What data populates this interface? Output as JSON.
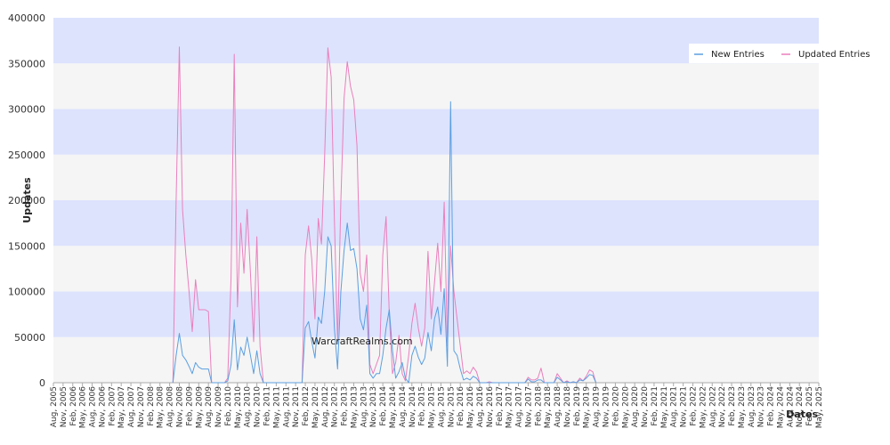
{
  "chart_data": {
    "type": "line",
    "watermark": "WarcraftRealms.com",
    "xlabel": "Dates",
    "ylabel": "Updates",
    "ylim": [
      0,
      400000
    ],
    "yticks": [
      0,
      50000,
      100000,
      150000,
      200000,
      250000,
      300000,
      350000,
      400000
    ],
    "xticks": [
      "Aug, 2005",
      "Nov, 2005",
      "Feb, 2006",
      "May, 2006",
      "Aug, 2006",
      "Nov, 2006",
      "Feb, 2007",
      "May, 2007",
      "Aug, 2007",
      "Nov, 2007",
      "Feb, 2008",
      "May, 2008",
      "Aug, 2008",
      "Nov, 2008",
      "Feb, 2009",
      "May, 2009",
      "Aug, 2009",
      "Nov, 2009",
      "Feb, 2010",
      "May, 2010",
      "Aug, 2010",
      "Nov, 2010",
      "Feb, 2011",
      "May, 2011",
      "Aug, 2011",
      "Nov, 2011",
      "Feb, 2012",
      "May, 2012",
      "Aug, 2012",
      "Nov, 2012",
      "Feb, 2013",
      "May, 2013",
      "Aug, 2013",
      "Nov, 2013",
      "Feb, 2014",
      "May, 2014",
      "Aug, 2014",
      "Nov, 2014",
      "Feb, 2015",
      "May, 2015",
      "Aug, 2015",
      "Nov, 2015",
      "Feb, 2016",
      "May, 2016",
      "Aug, 2016",
      "Nov, 2016",
      "Feb, 2017",
      "May, 2017",
      "Aug, 2017",
      "Nov, 2017",
      "Feb, 2018",
      "May, 2018",
      "Aug, 2018",
      "Nov, 2018",
      "Feb, 2019",
      "May, 2019",
      "Aug, 2019",
      "Nov, 2019",
      "Feb, 2020",
      "May, 2020",
      "Aug, 2020",
      "Nov, 2020",
      "Feb, 2021",
      "May, 2021",
      "Aug, 2021",
      "Nov, 2021",
      "Feb, 2022",
      "May, 2022",
      "Aug, 2022",
      "Nov, 2022",
      "Feb, 2023",
      "May, 2023",
      "Aug, 2023",
      "Nov, 2023",
      "Feb, 2024",
      "May, 2024",
      "Aug, 2024",
      "Nov, 2024",
      "Feb, 2025",
      "May, 2025"
    ],
    "grid": "horizontal alternating bands",
    "band_colors": [
      "#f5f5f5",
      "#dde3fd"
    ],
    "legend": "top-right",
    "series": [
      {
        "name": "New Entries",
        "color": "#5b9fe0",
        "points": [
          [
            "Sep, 2008",
            0
          ],
          [
            "Oct, 2008",
            30000
          ],
          [
            "Nov, 2008",
            54000
          ],
          [
            "Dec, 2008",
            30000
          ],
          [
            "Jan, 2009",
            25000
          ],
          [
            "Feb, 2009",
            18000
          ],
          [
            "Mar, 2009",
            10000
          ],
          [
            "Apr, 2009",
            22000
          ],
          [
            "May, 2009",
            17000
          ],
          [
            "Jun, 2009",
            15000
          ],
          [
            "Jul, 2009",
            15000
          ],
          [
            "Aug, 2009",
            15000
          ],
          [
            "Sep, 2009",
            0
          ],
          [
            "Jan, 2010",
            0
          ],
          [
            "Feb, 2010",
            2000
          ],
          [
            "Mar, 2010",
            20000
          ],
          [
            "Apr, 2010",
            69000
          ],
          [
            "May, 2010",
            14000
          ],
          [
            "Jun, 2010",
            39000
          ],
          [
            "Jul, 2010",
            30000
          ],
          [
            "Aug, 2010",
            50000
          ],
          [
            "Sep, 2010",
            30000
          ],
          [
            "Oct, 2010",
            10000
          ],
          [
            "Nov, 2010",
            35000
          ],
          [
            "Dec, 2010",
            10000
          ],
          [
            "Jan, 2011",
            0
          ],
          [
            "Jan, 2012",
            0
          ],
          [
            "Feb, 2012",
            60000
          ],
          [
            "Mar, 2012",
            67000
          ],
          [
            "Apr, 2012",
            45000
          ],
          [
            "May, 2012",
            27000
          ],
          [
            "Jun, 2012",
            72000
          ],
          [
            "Jul, 2012",
            65000
          ],
          [
            "Aug, 2012",
            100000
          ],
          [
            "Sep, 2012",
            160000
          ],
          [
            "Oct, 2012",
            150000
          ],
          [
            "Nov, 2012",
            60000
          ],
          [
            "Dec, 2012",
            15000
          ],
          [
            "Jan, 2013",
            100000
          ],
          [
            "Feb, 2013",
            145000
          ],
          [
            "Mar, 2013",
            175000
          ],
          [
            "Apr, 2013",
            145000
          ],
          [
            "May, 2013",
            147000
          ],
          [
            "Jun, 2013",
            125000
          ],
          [
            "Jul, 2013",
            70000
          ],
          [
            "Aug, 2013",
            58000
          ],
          [
            "Sep, 2013",
            85000
          ],
          [
            "Oct, 2013",
            10000
          ],
          [
            "Nov, 2013",
            5000
          ],
          [
            "Dec, 2013",
            10000
          ],
          [
            "Jan, 2014",
            10000
          ],
          [
            "Feb, 2014",
            30000
          ],
          [
            "Mar, 2014",
            60000
          ],
          [
            "Apr, 2014",
            80000
          ],
          [
            "May, 2014",
            35000
          ],
          [
            "Jun, 2014",
            5000
          ],
          [
            "Jul, 2014",
            12000
          ],
          [
            "Aug, 2014",
            22000
          ],
          [
            "Sep, 2014",
            5000
          ],
          [
            "Oct, 2014",
            0
          ],
          [
            "Nov, 2014",
            30000
          ],
          [
            "Dec, 2014",
            40000
          ],
          [
            "Jan, 2015",
            28000
          ],
          [
            "Feb, 2015",
            20000
          ],
          [
            "Mar, 2015",
            27000
          ],
          [
            "Apr, 2015",
            55000
          ],
          [
            "May, 2015",
            35000
          ],
          [
            "Jun, 2015",
            70000
          ],
          [
            "Jul, 2015",
            83000
          ],
          [
            "Aug, 2015",
            53000
          ],
          [
            "Sep, 2015",
            103000
          ],
          [
            "Oct, 2015",
            18000
          ],
          [
            "Nov, 2015",
            308000
          ],
          [
            "Dec, 2015",
            35000
          ],
          [
            "Jan, 2016",
            30000
          ],
          [
            "Feb, 2016",
            15000
          ],
          [
            "Mar, 2016",
            3000
          ],
          [
            "Apr, 2016",
            5000
          ],
          [
            "May, 2016",
            3000
          ],
          [
            "Jun, 2016",
            7000
          ],
          [
            "Jul, 2016",
            5000
          ],
          [
            "Aug, 2016",
            0
          ],
          [
            "Oct, 2017",
            0
          ],
          [
            "Nov, 2017",
            4000
          ],
          [
            "Dec, 2017",
            1000
          ],
          [
            "Jan, 2018",
            1000
          ],
          [
            "Feb, 2018",
            3000
          ],
          [
            "Mar, 2018",
            3000
          ],
          [
            "Apr, 2018",
            0
          ],
          [
            "Jul, 2018",
            0
          ],
          [
            "Aug, 2018",
            6000
          ],
          [
            "Sep, 2018",
            3000
          ],
          [
            "Oct, 2018",
            0
          ],
          [
            "Nov, 2018",
            1000
          ],
          [
            "Dec, 2018",
            0
          ],
          [
            "Jan, 2019",
            1000
          ],
          [
            "Feb, 2019",
            0
          ],
          [
            "Mar, 2019",
            3000
          ],
          [
            "Apr, 2019",
            2000
          ],
          [
            "May, 2019",
            5000
          ],
          [
            "Jun, 2019",
            9000
          ],
          [
            "Jul, 2019",
            8000
          ],
          [
            "Aug, 2019",
            0
          ]
        ]
      },
      {
        "name": "Updated Entries",
        "color": "#ea7fbd",
        "points": [
          [
            "Sep, 2008",
            0
          ],
          [
            "Oct, 2008",
            200000
          ],
          [
            "Nov, 2008",
            368000
          ],
          [
            "Dec, 2008",
            190000
          ],
          [
            "Jan, 2009",
            140000
          ],
          [
            "Feb, 2009",
            100000
          ],
          [
            "Mar, 2009",
            56000
          ],
          [
            "Apr, 2009",
            113000
          ],
          [
            "May, 2009",
            80000
          ],
          [
            "Jun, 2009",
            80000
          ],
          [
            "Jul, 2009",
            80000
          ],
          [
            "Aug, 2009",
            78000
          ],
          [
            "Sep, 2009",
            0
          ],
          [
            "Jan, 2010",
            0
          ],
          [
            "Feb, 2010",
            5000
          ],
          [
            "Mar, 2010",
            115000
          ],
          [
            "Apr, 2010",
            360000
          ],
          [
            "May, 2010",
            83000
          ],
          [
            "Jun, 2010",
            175000
          ],
          [
            "Jul, 2010",
            120000
          ],
          [
            "Aug, 2010",
            190000
          ],
          [
            "Sep, 2010",
            120000
          ],
          [
            "Oct, 2010",
            45000
          ],
          [
            "Nov, 2010",
            160000
          ],
          [
            "Dec, 2010",
            40000
          ],
          [
            "Jan, 2011",
            0
          ],
          [
            "Jan, 2012",
            0
          ],
          [
            "Feb, 2012",
            140000
          ],
          [
            "Mar, 2012",
            172000
          ],
          [
            "Apr, 2012",
            135000
          ],
          [
            "May, 2012",
            70000
          ],
          [
            "Jun, 2012",
            180000
          ],
          [
            "Jul, 2012",
            152000
          ],
          [
            "Aug, 2012",
            250000
          ],
          [
            "Sep, 2012",
            367000
          ],
          [
            "Oct, 2012",
            335000
          ],
          [
            "Nov, 2012",
            180000
          ],
          [
            "Dec, 2012",
            45000
          ],
          [
            "Jan, 2013",
            200000
          ],
          [
            "Feb, 2013",
            312000
          ],
          [
            "Mar, 2013",
            352000
          ],
          [
            "Apr, 2013",
            325000
          ],
          [
            "May, 2013",
            310000
          ],
          [
            "Jun, 2013",
            260000
          ],
          [
            "Jul, 2013",
            120000
          ],
          [
            "Aug, 2013",
            100000
          ],
          [
            "Sep, 2013",
            140000
          ],
          [
            "Oct, 2013",
            20000
          ],
          [
            "Nov, 2013",
            10000
          ],
          [
            "Dec, 2013",
            20000
          ],
          [
            "Jan, 2014",
            30000
          ],
          [
            "Feb, 2014",
            140000
          ],
          [
            "Mar, 2014",
            182000
          ],
          [
            "Apr, 2014",
            75000
          ],
          [
            "May, 2014",
            10000
          ],
          [
            "Jun, 2014",
            22000
          ],
          [
            "Jul, 2014",
            52000
          ],
          [
            "Aug, 2014",
            10000
          ],
          [
            "Sep, 2014",
            2000
          ],
          [
            "Oct, 2014",
            30000
          ],
          [
            "Nov, 2014",
            65000
          ],
          [
            "Dec, 2014",
            87000
          ],
          [
            "Jan, 2015",
            60000
          ],
          [
            "Feb, 2015",
            40000
          ],
          [
            "Mar, 2015",
            60000
          ],
          [
            "Apr, 2015",
            144000
          ],
          [
            "May, 2015",
            70000
          ],
          [
            "Jun, 2015",
            110000
          ],
          [
            "Jul, 2015",
            153000
          ],
          [
            "Aug, 2015",
            100000
          ],
          [
            "Sep, 2015",
            198000
          ],
          [
            "Oct, 2015",
            40000
          ],
          [
            "Nov, 2015",
            150000
          ],
          [
            "Dec, 2015",
            100000
          ],
          [
            "Jan, 2016",
            70000
          ],
          [
            "Feb, 2016",
            40000
          ],
          [
            "Mar, 2016",
            10000
          ],
          [
            "Apr, 2016",
            13000
          ],
          [
            "May, 2016",
            10000
          ],
          [
            "Jun, 2016",
            17000
          ],
          [
            "Jul, 2016",
            12000
          ],
          [
            "Aug, 2016",
            0
          ],
          [
            "Sep, 2016",
            0
          ],
          [
            "Oct, 2016",
            0
          ],
          [
            "Nov, 2016",
            1000
          ],
          [
            "Dec, 2016",
            0
          ],
          [
            "Oct, 2017",
            0
          ],
          [
            "Nov, 2017",
            6000
          ],
          [
            "Dec, 2017",
            3000
          ],
          [
            "Jan, 2018",
            3000
          ],
          [
            "Feb, 2018",
            5000
          ],
          [
            "Mar, 2018",
            16000
          ],
          [
            "Apr, 2018",
            0
          ],
          [
            "Jul, 2018",
            0
          ],
          [
            "Aug, 2018",
            10000
          ],
          [
            "Sep, 2018",
            5000
          ],
          [
            "Oct, 2018",
            0
          ],
          [
            "Nov, 2018",
            2000
          ],
          [
            "Dec, 2018",
            0
          ],
          [
            "Jan, 2019",
            1000
          ],
          [
            "Feb, 2019",
            0
          ],
          [
            "Mar, 2019",
            5000
          ],
          [
            "Apr, 2019",
            2000
          ],
          [
            "May, 2019",
            7000
          ],
          [
            "Jun, 2019",
            14000
          ],
          [
            "Jul, 2019",
            12000
          ],
          [
            "Aug, 2019",
            0
          ]
        ]
      }
    ]
  }
}
